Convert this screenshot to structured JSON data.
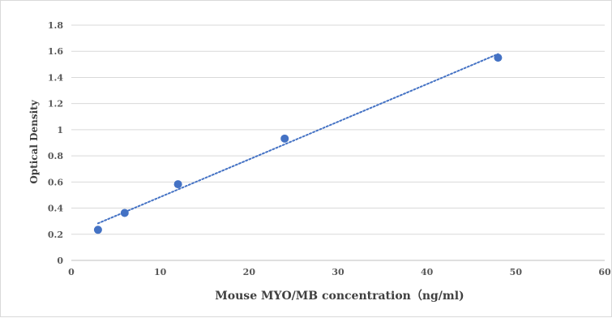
{
  "chart_data": {
    "type": "scatter",
    "title": "",
    "xlabel": "Mouse MYO/MB concentration（ng/ml)",
    "ylabel": "Optical Density",
    "xlim": [
      0,
      60
    ],
    "ylim": [
      0,
      1.8
    ],
    "x_ticks": [
      "0",
      "10",
      "20",
      "30",
      "40",
      "50",
      "60"
    ],
    "y_ticks": [
      "0",
      "0.2",
      "0.4",
      "0.6",
      "0.8",
      "1",
      "1.2",
      "1.4",
      "1.6",
      "1.8"
    ],
    "grid": "horizontal",
    "legend": "none",
    "series": [
      {
        "x": [
          3,
          6,
          12,
          24,
          48
        ],
        "y": [
          0.234,
          0.363,
          0.583,
          0.932,
          1.551
        ],
        "color": "#4472c4",
        "trendline": {
          "type": "linear",
          "style": "dotted",
          "x_range": [
            3,
            48
          ],
          "color": "#4472c4"
        }
      }
    ]
  }
}
